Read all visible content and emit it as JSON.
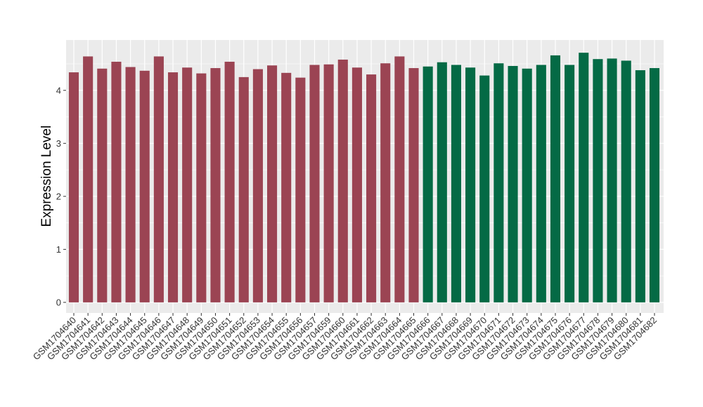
{
  "chart_data": {
    "type": "bar",
    "title": "",
    "xlabel": "",
    "ylabel": "Expression Level",
    "ylim": [
      -0.2,
      4.95
    ],
    "yticks": [
      0,
      1,
      2,
      3,
      4
    ],
    "grid": true,
    "categories": [
      "GSM1704640",
      "GSM1704641",
      "GSM1704642",
      "GSM1704643",
      "GSM1704644",
      "GSM1704645",
      "GSM1704646",
      "GSM1704647",
      "GSM1704648",
      "GSM1704649",
      "GSM1704650",
      "GSM1704651",
      "GSM1704652",
      "GSM1704653",
      "GSM1704654",
      "GSM1704655",
      "GSM1704656",
      "GSM1704657",
      "GSM1704659",
      "GSM1704660",
      "GSM1704661",
      "GSM1704662",
      "GSM1704663",
      "GSM1704664",
      "GSM1704665",
      "GSM1704666",
      "GSM1704667",
      "GSM1704668",
      "GSM1704669",
      "GSM1704670",
      "GSM1704671",
      "GSM1704672",
      "GSM1704673",
      "GSM1704674",
      "GSM1704675",
      "GSM1704676",
      "GSM1704677",
      "GSM1704678",
      "GSM1704679",
      "GSM1704680",
      "GSM1704681",
      "GSM1704682"
    ],
    "values": [
      4.34,
      4.64,
      4.41,
      4.54,
      4.44,
      4.37,
      4.64,
      4.34,
      4.43,
      4.32,
      4.42,
      4.54,
      4.25,
      4.4,
      4.47,
      4.33,
      4.24,
      4.48,
      4.49,
      4.58,
      4.43,
      4.3,
      4.51,
      4.64,
      4.42,
      4.45,
      4.53,
      4.48,
      4.43,
      4.28,
      4.51,
      4.46,
      4.41,
      4.48,
      4.66,
      4.48,
      4.71,
      4.59,
      4.6,
      4.56,
      4.38,
      4.42
    ],
    "bar_colors": [
      "#9b4453",
      "#9b4453",
      "#9b4453",
      "#9b4453",
      "#9b4453",
      "#9b4453",
      "#9b4453",
      "#9b4453",
      "#9b4453",
      "#9b4453",
      "#9b4453",
      "#9b4453",
      "#9b4453",
      "#9b4453",
      "#9b4453",
      "#9b4453",
      "#9b4453",
      "#9b4453",
      "#9b4453",
      "#9b4453",
      "#9b4453",
      "#9b4453",
      "#9b4453",
      "#9b4453",
      "#9b4453",
      "#046a45",
      "#046a45",
      "#046a45",
      "#046a45",
      "#046a45",
      "#046a45",
      "#046a45",
      "#046a45",
      "#046a45",
      "#046a45",
      "#046a45",
      "#046a45",
      "#046a45",
      "#046a45",
      "#046a45",
      "#046a45",
      "#046a45"
    ],
    "panel_background": "#ebebeb",
    "grid_color": "#ffffff"
  }
}
